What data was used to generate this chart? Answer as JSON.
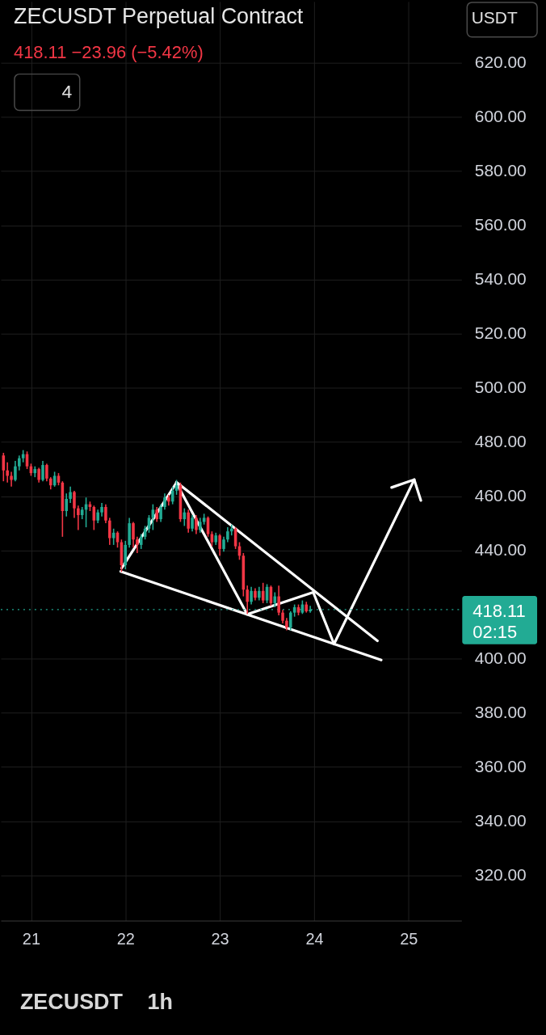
{
  "chart_data": {
    "type": "candlestick",
    "title": "ZECUSDT Perpetual Contract",
    "subtitle": "418.11  −23.96 (−5.42%)",
    "x": [
      20.7083,
      20.75,
      20.7917,
      20.8333,
      20.875,
      20.9167,
      20.9583,
      21,
      21.0417,
      21.0833,
      21.125,
      21.1667,
      21.2083,
      21.25,
      21.2917,
      21.3333,
      21.375,
      21.4167,
      21.4583,
      21.5,
      21.5417,
      21.5833,
      21.625,
      21.6667,
      21.7083,
      21.75,
      21.7917,
      21.8333,
      21.875,
      21.9167,
      21.9583,
      22,
      22.0417,
      22.0833,
      22.125,
      22.1667,
      22.2083,
      22.25,
      22.2917,
      22.3333,
      22.375,
      22.4167,
      22.4583,
      22.5,
      22.5417,
      22.5833,
      22.625,
      22.6667,
      22.7083,
      22.75,
      22.7917,
      22.8333,
      22.875,
      22.9167,
      22.9583,
      23,
      23.0417,
      23.0833,
      23.125,
      23.1667,
      23.2083,
      23.25,
      23.2917,
      23.3333,
      23.375,
      23.4167,
      23.4583,
      23.5,
      23.5417,
      23.5833,
      23.625,
      23.6667,
      23.7083,
      23.75,
      23.7917,
      23.8333,
      23.875,
      23.9167,
      23.9583
    ],
    "ohlc": [
      [
        475,
        476,
        465.5,
        469.5
      ],
      [
        469.5,
        472.5,
        465,
        467.5
      ],
      [
        467.5,
        469,
        463.5,
        466
      ],
      [
        466,
        473,
        465.5,
        471
      ],
      [
        471,
        475,
        469.5,
        474
      ],
      [
        474,
        477,
        472.5,
        475.5
      ],
      [
        475.5,
        476.5,
        470,
        471
      ],
      [
        471,
        472,
        467.5,
        468.5
      ],
      [
        468.5,
        471,
        467,
        470
      ],
      [
        470,
        470.5,
        465,
        466
      ],
      [
        466,
        473,
        465.5,
        471.5
      ],
      [
        471.5,
        472,
        465.5,
        466.5
      ],
      [
        466.5,
        467,
        462.5,
        464
      ],
      [
        464,
        469,
        463.5,
        467.5
      ],
      [
        467.5,
        468.5,
        464,
        465
      ],
      [
        465,
        465.5,
        445,
        454.5
      ],
      [
        454.5,
        461,
        452.5,
        459
      ],
      [
        459,
        463.5,
        457.5,
        461.5
      ],
      [
        461.5,
        462,
        452,
        455.5
      ],
      [
        455.5,
        456.5,
        447.5,
        453
      ],
      [
        453,
        456,
        451.5,
        455
      ],
      [
        455,
        459.5,
        448.5,
        457
      ],
      [
        457,
        458,
        454.5,
        456
      ],
      [
        456,
        456.5,
        447.5,
        451
      ],
      [
        451,
        455,
        450,
        454
      ],
      [
        454,
        457.5,
        452.5,
        456
      ],
      [
        456,
        457,
        450,
        451
      ],
      [
        451,
        452,
        442,
        444.5
      ],
      [
        444.5,
        448,
        442,
        446.5
      ],
      [
        446.5,
        447,
        441,
        443
      ],
      [
        443,
        444,
        432,
        434.5
      ],
      [
        434.5,
        443.5,
        433,
        442
      ],
      [
        442,
        452,
        441,
        450
      ],
      [
        450,
        450.5,
        441,
        444
      ],
      [
        444,
        445,
        439,
        442
      ],
      [
        442,
        446,
        440.5,
        445
      ],
      [
        445,
        449,
        444,
        448
      ],
      [
        448,
        453,
        446.5,
        452
      ],
      [
        452,
        457,
        447.5,
        455
      ],
      [
        455,
        456,
        450.5,
        451.5
      ],
      [
        451.5,
        457,
        450.5,
        456
      ],
      [
        456,
        461,
        455,
        459.5
      ],
      [
        459.5,
        460.5,
        456.5,
        458
      ],
      [
        458,
        463.5,
        457,
        462
      ],
      [
        462,
        466,
        460.5,
        464
      ],
      [
        464,
        465,
        450.5,
        451.5
      ],
      [
        451.5,
        455.5,
        449,
        454
      ],
      [
        454,
        455,
        446.5,
        448
      ],
      [
        448,
        453,
        447,
        452
      ],
      [
        452,
        453,
        446,
        447.5
      ],
      [
        447.5,
        452,
        446.5,
        450.5
      ],
      [
        450.5,
        453.5,
        449.5,
        452
      ],
      [
        452,
        452.5,
        445,
        446
      ],
      [
        446,
        447,
        441.5,
        443
      ],
      [
        443,
        446.5,
        442,
        445.5
      ],
      [
        445.5,
        446,
        438,
        440.5
      ],
      [
        440.5,
        445,
        439.5,
        444
      ],
      [
        444,
        448.5,
        443,
        447
      ],
      [
        447,
        449.5,
        445.5,
        448
      ],
      [
        448,
        448.5,
        440.5,
        441.5
      ],
      [
        441.5,
        443,
        436.5,
        438
      ],
      [
        438,
        439,
        423,
        425.5
      ],
      [
        425.5,
        427,
        416.5,
        421
      ],
      [
        421,
        426.5,
        420,
        425
      ],
      [
        425,
        426,
        421.5,
        422.5
      ],
      [
        422.5,
        426.5,
        421.5,
        425
      ],
      [
        425,
        428,
        420.5,
        421.5
      ],
      [
        421.5,
        427.5,
        420.5,
        426.5
      ],
      [
        426.5,
        427,
        419.5,
        420.5
      ],
      [
        420.5,
        424.5,
        419,
        423
      ],
      [
        423,
        427,
        416,
        417
      ],
      [
        417,
        418,
        413,
        414
      ],
      [
        414,
        415,
        410.5,
        411.5
      ],
      [
        411.5,
        417.5,
        410.5,
        417
      ],
      [
        417,
        420,
        415.5,
        419
      ],
      [
        419,
        420,
        416,
        417
      ],
      [
        417,
        421.5,
        416.5,
        420
      ],
      [
        420,
        421,
        417,
        417.5
      ],
      [
        417.5,
        419.5,
        417,
        418.11
      ]
    ],
    "colors": [
      "#f23645",
      "#f23645",
      "#f23645",
      "#22ab94",
      "#22ab94",
      "#22ab94",
      "#f23645",
      "#f23645",
      "#22ab94",
      "#f23645",
      "#22ab94",
      "#f23645",
      "#f23645",
      "#22ab94",
      "#f23645",
      "#f23645",
      "#22ab94",
      "#22ab94",
      "#f23645",
      "#f23645",
      "#22ab94",
      "#22ab94",
      "#f23645",
      "#f23645",
      "#22ab94",
      "#22ab94",
      "#f23645",
      "#f23645",
      "#22ab94",
      "#f23645",
      "#f23645",
      "#22ab94",
      "#22ab94",
      "#f23645",
      "#f23645",
      "#22ab94",
      "#22ab94",
      "#22ab94",
      "#22ab94",
      "#f23645",
      "#22ab94",
      "#22ab94",
      "#f23645",
      "#22ab94",
      "#22ab94",
      "#f23645",
      "#22ab94",
      "#f23645",
      "#22ab94",
      "#f23645",
      "#22ab94",
      "#22ab94",
      "#f23645",
      "#f23645",
      "#22ab94",
      "#f23645",
      "#22ab94",
      "#22ab94",
      "#22ab94",
      "#f23645",
      "#f23645",
      "#f23645",
      "#f23645",
      "#22ab94",
      "#f23645",
      "#22ab94",
      "#f23645",
      "#22ab94",
      "#f23645",
      "#22ab94",
      "#f23645",
      "#f23645",
      "#f23645",
      "#22ab94",
      "#22ab94",
      "#f23645",
      "#22ab94",
      "#f23645",
      "#22ab94"
    ],
    "series": [
      {
        "type": "line",
        "color": "#ffffff",
        "x": [
          22.54,
          24.67
        ],
        "values": [
          465.2,
          406.6
        ]
      },
      {
        "type": "line",
        "color": "#ffffff",
        "x": [
          21.95,
          24.71
        ],
        "values": [
          432.2,
          399.5
        ]
      },
      {
        "type": "line",
        "color": "#ffffff",
        "x": [
          21.96,
          22.54,
          23.29,
          23.99,
          24.21,
          25.06
        ],
        "values": [
          433.4,
          464.9,
          416.4,
          424.5,
          405.4,
          466.1
        ]
      },
      {
        "type": "line",
        "color": "#ffffff",
        "x": [
          24.82,
          25.06,
          25.13
        ],
        "values": [
          463.2,
          466.1,
          458.4
        ]
      }
    ],
    "xlim": [
      20.68,
      25.56
    ],
    "xticks": [
      21,
      22,
      23,
      24,
      25
    ],
    "ylim": [
      303.3,
      642.6
    ],
    "yticks": [
      {
        "value": 320,
        "label": "320.00"
      },
      {
        "value": 340,
        "label": "340.00"
      },
      {
        "value": 360,
        "label": "360.00"
      },
      {
        "value": 380,
        "label": "380.00"
      },
      {
        "value": 400,
        "label": "400.00"
      },
      {
        "value": 440,
        "label": "440.00"
      },
      {
        "value": 460,
        "label": "460.00"
      },
      {
        "value": 480,
        "label": "480.00"
      },
      {
        "value": 500,
        "label": "500.00"
      },
      {
        "value": 520,
        "label": "520.00"
      },
      {
        "value": 540,
        "label": "540.00"
      },
      {
        "value": 560,
        "label": "560.00"
      },
      {
        "value": 580,
        "label": "580.00"
      },
      {
        "value": 600,
        "label": "600.00"
      },
      {
        "value": 620,
        "label": "620.00"
      }
    ],
    "ref_lines": [
      {
        "axis": "y",
        "value": 418.11,
        "label": "418.11",
        "color": "#22ab94",
        "line_style": "dotted"
      }
    ],
    "annotations": [
      "USDT",
      "4",
      "02:15",
      "ZECUSDT",
      "1h"
    ],
    "grid": true
  }
}
